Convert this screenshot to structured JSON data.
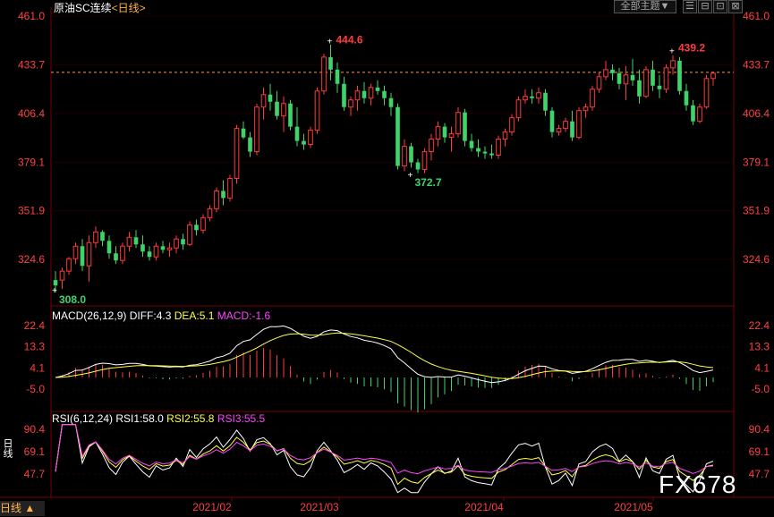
{
  "header": {
    "title": "原油SC连续",
    "period": "<日线>"
  },
  "toolbar": {
    "dropdown_label": "全部主题",
    "dropdown_arrow": "▼",
    "buttons": [
      "☰",
      "⊟",
      "⊡",
      "⊠"
    ]
  },
  "main_axis": {
    "ticks": [
      "461.0",
      "433.7",
      "406.4",
      "379.1",
      "351.9",
      "324.6"
    ],
    "values": [
      461.0,
      433.7,
      406.4,
      379.1,
      351.9,
      324.6
    ]
  },
  "annotations": {
    "high1": "444.6",
    "high2": "439.2",
    "low1": "372.7",
    "low0": "308.0"
  },
  "macd": {
    "label": "MACD(26,12,9)",
    "diff": "DIFF:4.3",
    "dea": "DEA:5.1",
    "macd": "MACD:-1.6",
    "ticks": [
      "22.4",
      "13.3",
      "4.1",
      "-5.0"
    ],
    "values": [
      22.4,
      13.3,
      4.1,
      -5.0
    ]
  },
  "rsi": {
    "label": "RSI(6,12,24)",
    "rsi1": "RSI1:58.0",
    "rsi2": "RSI2:55.8",
    "rsi3": "RSI3:55.5",
    "ticks": [
      "90.4",
      "69.1",
      "47.7"
    ],
    "values": [
      90.4,
      69.1,
      47.7
    ],
    "side_label": "日线"
  },
  "x_axis": {
    "labels": [
      "2021/02",
      "2021/03",
      "2021/04",
      "2021/05"
    ]
  },
  "bottom": {
    "period_label": "日线",
    "arrow": "▲"
  },
  "watermark": "FX678",
  "colors": {
    "up": "#ff3b3b",
    "down": "#3fd46a",
    "axis_text": "#ff4040",
    "diff": "#ffffff",
    "dea": "#ffff44",
    "macd": "#ff44ff",
    "grid": "#7a0000",
    "ref_line": "#ff9933"
  },
  "chart_data": {
    "type": "candlestick",
    "title": "原油SC连续 <日线>",
    "ylim": [
      300,
      461
    ],
    "reference_price": 429.5,
    "candles": [
      [
        313,
        318,
        306,
        310
      ],
      [
        313,
        320,
        308,
        318
      ],
      [
        318,
        326,
        316,
        325
      ],
      [
        325,
        334,
        322,
        332
      ],
      [
        332,
        336,
        318,
        321
      ],
      [
        321,
        338,
        312,
        334
      ],
      [
        334,
        343,
        331,
        340
      ],
      [
        340,
        341,
        332,
        335
      ],
      [
        335,
        338,
        325,
        328
      ],
      [
        328,
        332,
        322,
        324
      ],
      [
        324,
        334,
        322,
        332
      ],
      [
        332,
        340,
        329,
        337
      ],
      [
        337,
        341,
        331,
        333
      ],
      [
        333,
        338,
        326,
        329
      ],
      [
        329,
        332,
        324,
        326
      ],
      [
        326,
        334,
        324,
        332
      ],
      [
        332,
        335,
        328,
        330
      ],
      [
        330,
        334,
        326,
        331
      ],
      [
        331,
        338,
        328,
        336
      ],
      [
        336,
        339,
        330,
        333
      ],
      [
        333,
        346,
        332,
        344
      ],
      [
        344,
        347,
        338,
        341
      ],
      [
        341,
        350,
        339,
        348
      ],
      [
        348,
        355,
        346,
        353
      ],
      [
        353,
        365,
        351,
        363
      ],
      [
        363,
        369,
        355,
        359
      ],
      [
        359,
        372,
        357,
        370
      ],
      [
        370,
        400,
        367,
        398
      ],
      [
        398,
        402,
        392,
        393
      ],
      [
        393,
        396,
        382,
        385
      ],
      [
        385,
        412,
        383,
        410
      ],
      [
        410,
        421,
        403,
        417
      ],
      [
        417,
        423,
        408,
        413
      ],
      [
        413,
        419,
        403,
        405
      ],
      [
        405,
        416,
        396,
        412
      ],
      [
        412,
        414,
        397,
        399
      ],
      [
        399,
        410,
        388,
        391
      ],
      [
        391,
        395,
        386,
        389
      ],
      [
        389,
        399,
        387,
        397
      ],
      [
        397,
        421,
        395,
        419
      ],
      [
        419,
        440,
        417,
        438
      ],
      [
        438,
        445,
        425,
        431
      ],
      [
        431,
        435,
        418,
        423
      ],
      [
        423,
        427,
        408,
        410
      ],
      [
        410,
        416,
        405,
        414
      ],
      [
        414,
        422,
        408,
        419
      ],
      [
        419,
        424,
        412,
        415
      ],
      [
        415,
        423,
        411,
        421
      ],
      [
        421,
        425,
        417,
        419
      ],
      [
        419,
        422,
        411,
        415
      ],
      [
        415,
        418,
        405,
        410
      ],
      [
        410,
        412,
        375,
        377
      ],
      [
        377,
        392,
        374,
        388
      ],
      [
        388,
        390,
        376,
        379
      ],
      [
        379,
        381,
        373,
        375
      ],
      [
        375,
        387,
        373,
        385
      ],
      [
        385,
        395,
        380,
        392
      ],
      [
        392,
        402,
        388,
        399
      ],
      [
        399,
        401,
        390,
        393
      ],
      [
        393,
        399,
        385,
        395
      ],
      [
        395,
        410,
        393,
        407
      ],
      [
        407,
        409,
        388,
        391
      ],
      [
        391,
        395,
        385,
        387
      ],
      [
        387,
        392,
        382,
        385
      ],
      [
        385,
        388,
        381,
        384
      ],
      [
        384,
        389,
        381,
        383
      ],
      [
        383,
        394,
        381,
        392
      ],
      [
        392,
        398,
        388,
        396
      ],
      [
        396,
        406,
        394,
        404
      ],
      [
        404,
        416,
        402,
        414
      ],
      [
        414,
        420,
        412,
        416
      ],
      [
        416,
        420,
        412,
        415
      ],
      [
        415,
        421,
        412,
        418
      ],
      [
        418,
        420,
        405,
        408
      ],
      [
        408,
        410,
        393,
        396
      ],
      [
        396,
        400,
        394,
        398
      ],
      [
        398,
        404,
        396,
        402
      ],
      [
        402,
        408,
        391,
        393
      ],
      [
        393,
        410,
        392,
        408
      ],
      [
        408,
        412,
        404,
        410
      ],
      [
        410,
        422,
        408,
        420
      ],
      [
        420,
        430,
        418,
        427
      ],
      [
        427,
        436,
        425,
        431
      ],
      [
        431,
        434,
        425,
        429
      ],
      [
        429,
        432,
        420,
        423
      ],
      [
        423,
        433,
        414,
        428
      ],
      [
        428,
        437,
        422,
        425
      ],
      [
        425,
        431,
        412,
        416
      ],
      [
        416,
        433,
        415,
        431
      ],
      [
        431,
        436,
        419,
        422
      ],
      [
        422,
        428,
        415,
        420
      ],
      [
        420,
        434,
        418,
        432
      ],
      [
        432,
        439,
        428,
        436
      ],
      [
        436,
        438,
        417,
        419
      ],
      [
        419,
        423,
        408,
        411
      ],
      [
        411,
        414,
        400,
        402
      ],
      [
        402,
        412,
        401,
        410
      ],
      [
        410,
        428,
        409,
        426
      ],
      [
        426,
        430,
        422,
        429
      ]
    ],
    "macd": {
      "diff_end": 4.3,
      "dea_end": 5.1,
      "macd_end": -1.6,
      "ylim": [
        -12,
        24
      ]
    },
    "rsi": {
      "rsi1_end": 58.0,
      "rsi2_end": 55.8,
      "rsi3_end": 55.5,
      "ylim": [
        30,
        95
      ]
    },
    "xlabels": [
      "2021/02",
      "2021/03",
      "2021/04",
      "2021/05"
    ]
  }
}
